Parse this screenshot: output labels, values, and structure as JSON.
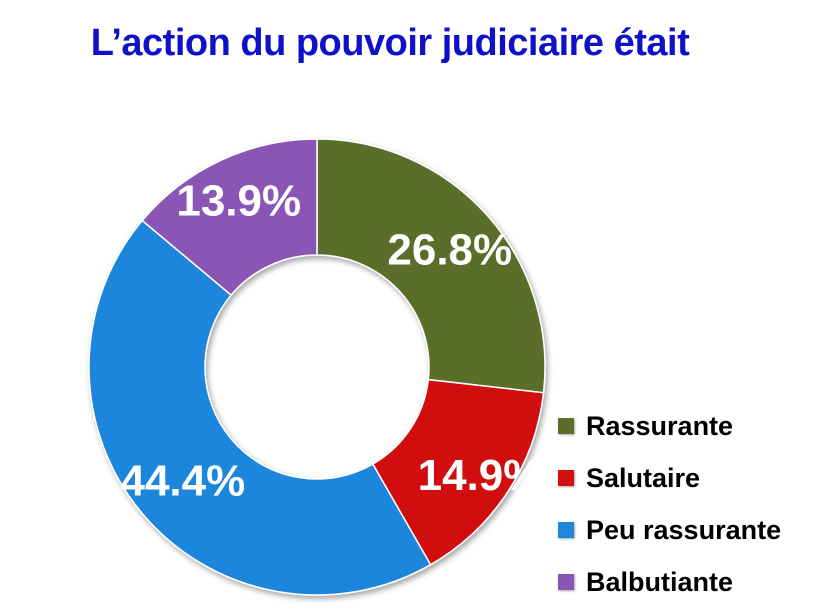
{
  "chart_data": {
    "type": "pie",
    "title": "L’action du pouvoir judiciaire était",
    "donut": true,
    "legend_position": "bottom-right",
    "slices": [
      {
        "name": "Rassurante",
        "value": 26.8,
        "label": "26.8%",
        "color": "#5a6e2a"
      },
      {
        "name": "Salutaire",
        "value": 14.9,
        "label": "14.9%",
        "color": "#d20f0f"
      },
      {
        "name": "Peu rassurante",
        "value": 44.4,
        "label": "44.4%",
        "color": "#1f86dc"
      },
      {
        "name": "Balbutiante",
        "value": 13.9,
        "label": "13.9%",
        "color": "#8a55b5"
      }
    ]
  }
}
